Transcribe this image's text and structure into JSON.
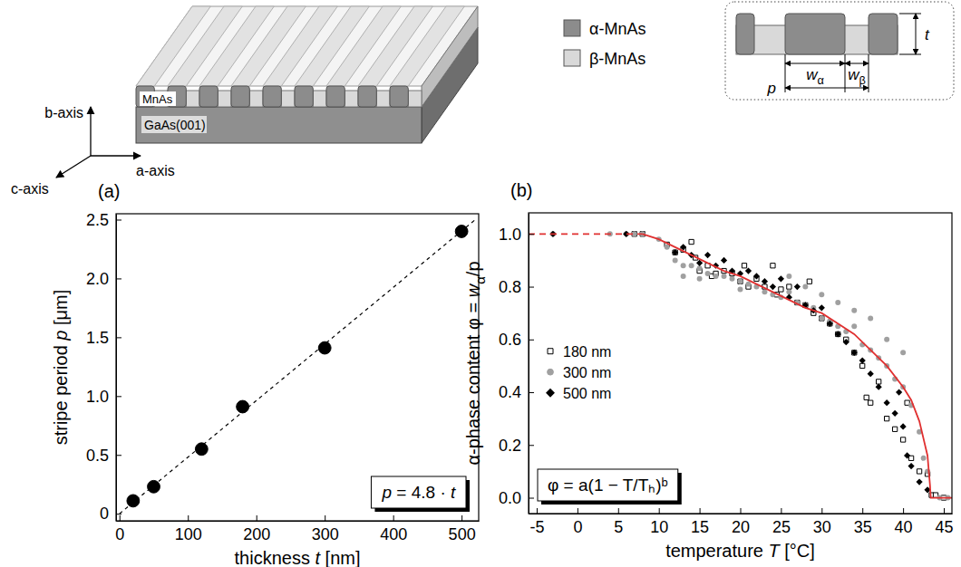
{
  "schematic": {
    "b_axis": "b-axis",
    "c_axis": "c-axis",
    "a_axis": "a-axis",
    "film": "MnAs",
    "substrate": "GaAs(001)"
  },
  "phase_legend": [
    {
      "label": "α-MnAs",
      "color": "#8c8c8c"
    },
    {
      "label": "β-MnAs",
      "color": "#d9d9d9"
    }
  ],
  "inset": {
    "thickness": "t",
    "alpha_width": "wα",
    "beta_width": "wβ",
    "period": "p"
  },
  "chart_data": [
    {
      "panel": "(a)",
      "type": "scatter",
      "x_label": "thickness t [nm]",
      "y_label": "stripe period p [μm]",
      "annotation": "p = 4.8 · t",
      "grid": false,
      "xlim": [
        -5,
        525
      ],
      "ylim": [
        -0.06,
        2.55
      ],
      "xticks": [
        0,
        100,
        200,
        300,
        400,
        500
      ],
      "yticks": [
        0,
        0.5,
        {
          "value": 1,
          "label": "1.0"
        },
        1.5,
        {
          "value": 2,
          "label": "2.0"
        },
        2.5
      ],
      "series": [
        {
          "type": "scatter",
          "marker": "circle",
          "color": "#000000",
          "x": [
            20,
            50,
            120,
            180,
            300,
            500
          ],
          "values": [
            0.11,
            0.23,
            0.55,
            0.91,
            1.41,
            2.4
          ]
        },
        {
          "type": "line",
          "line_style": "dashed",
          "color": "#000000",
          "x": [
            0,
            520
          ],
          "values": [
            0,
            2.5
          ]
        }
      ]
    },
    {
      "panel": "(b)",
      "type": "scatter",
      "x_label": "temperature T [°C]",
      "y_label": "α-phase content φ = wα/p",
      "annotation": "φ = a(1 − T/Tₕ)ᵇ",
      "grid": false,
      "legend": "left",
      "xlim": [
        -6,
        46
      ],
      "ylim": [
        -0.06,
        1.08
      ],
      "xticks": [
        -5,
        0,
        5,
        10,
        15,
        20,
        25,
        30,
        35,
        40,
        45
      ],
      "yticks": [
        {
          "value": 0,
          "label": "0.0"
        },
        0.2,
        0.4,
        0.6,
        0.8,
        {
          "value": 1,
          "label": "1.0"
        }
      ],
      "series": [
        {
          "name": "180 nm",
          "type": "scatter",
          "marker": "square-open",
          "color": "#000000",
          "x": [
            7,
            8,
            11,
            12,
            13,
            14,
            14.5,
            15,
            16,
            16.5,
            17,
            18,
            19,
            20,
            20.5,
            21,
            22,
            23,
            24,
            24.5,
            25,
            26,
            27,
            28,
            28.5,
            29,
            30,
            31,
            32,
            33,
            34,
            35,
            35.5,
            36,
            37,
            38,
            39,
            40,
            40.5,
            41,
            42,
            43,
            43.5,
            44,
            45
          ],
          "values": [
            1.0,
            1.0,
            0.96,
            0.93,
            0.94,
            0.97,
            0.91,
            0.86,
            0.88,
            0.84,
            0.85,
            0.86,
            0.85,
            0.82,
            0.88,
            0.8,
            0.83,
            0.8,
            0.88,
            0.77,
            0.79,
            0.8,
            0.74,
            0.73,
            0.82,
            0.7,
            0.68,
            0.66,
            0.62,
            0.6,
            0.55,
            0.5,
            0.38,
            0.36,
            0.44,
            0.3,
            0.26,
            0.22,
            0.36,
            0.15,
            0.1,
            0.09,
            0.01,
            0.01,
            0.0
          ]
        },
        {
          "name": "300 nm",
          "type": "scatter",
          "marker": "circle",
          "color": "#a0a0a0",
          "x": [
            -3,
            4,
            6,
            7,
            8,
            10,
            11,
            12,
            13,
            13,
            14,
            15,
            15,
            16,
            17,
            18,
            19,
            20,
            20,
            21,
            22,
            23,
            24,
            25,
            26,
            26,
            27,
            28,
            28,
            29,
            30,
            30,
            31,
            32,
            32,
            33,
            34,
            34,
            35,
            36,
            36,
            37,
            38,
            38,
            39,
            40,
            40,
            41,
            42,
            42.5,
            43,
            44.5,
            45.5
          ],
          "values": [
            1.0,
            1.0,
            1.0,
            1.0,
            1.0,
            0.98,
            0.95,
            0.9,
            0.88,
            0.84,
            0.88,
            0.87,
            0.83,
            0.85,
            0.84,
            0.84,
            0.83,
            0.82,
            0.79,
            0.81,
            0.8,
            0.78,
            0.77,
            0.76,
            0.78,
            0.84,
            0.74,
            0.73,
            0.8,
            0.72,
            0.68,
            0.77,
            0.67,
            0.65,
            0.74,
            0.63,
            0.65,
            0.71,
            0.58,
            0.56,
            0.68,
            0.53,
            0.5,
            0.6,
            0.45,
            0.42,
            0.55,
            0.35,
            0.25,
            0.15,
            0.1,
            0.0,
            0.0
          ]
        },
        {
          "name": "500 nm",
          "type": "scatter",
          "marker": "diamond",
          "color": "#000000",
          "x": [
            -3,
            6,
            12,
            13,
            14,
            15,
            16,
            17,
            18,
            19,
            20,
            21,
            22,
            23,
            24,
            25,
            26,
            27,
            28,
            29,
            30,
            31,
            32,
            33,
            34,
            35,
            36,
            37,
            38,
            39,
            39.5,
            40,
            40.5,
            41,
            42,
            43
          ],
          "values": [
            1.0,
            1.0,
            0.93,
            0.95,
            0.92,
            0.89,
            0.92,
            0.88,
            0.9,
            0.86,
            0.85,
            0.86,
            0.84,
            0.82,
            0.8,
            0.83,
            0.76,
            0.8,
            0.73,
            0.71,
            0.72,
            0.66,
            0.62,
            0.59,
            0.55,
            0.52,
            0.47,
            0.42,
            0.36,
            0.32,
            0.4,
            0.27,
            0.16,
            0.12,
            0.06,
            0.03
          ]
        },
        {
          "type": "line",
          "line_style": "solid",
          "color": "#e03030",
          "x": [
            8,
            10,
            12,
            14,
            16,
            18,
            20,
            22,
            24,
            26,
            28,
            30,
            32,
            34,
            36,
            38,
            40,
            41,
            42,
            43,
            43.3,
            43.4,
            46
          ],
          "values": [
            1.0,
            0.98,
            0.95,
            0.92,
            0.89,
            0.86,
            0.84,
            0.81,
            0.78,
            0.75,
            0.72,
            0.7,
            0.66,
            0.62,
            0.56,
            0.5,
            0.42,
            0.37,
            0.29,
            0.16,
            0.05,
            0.0,
            0.0
          ]
        },
        {
          "type": "line",
          "line_style": "dashed",
          "color": "#e03030",
          "x": [
            -6,
            8
          ],
          "values": [
            1.0,
            1.0
          ]
        }
      ]
    }
  ]
}
